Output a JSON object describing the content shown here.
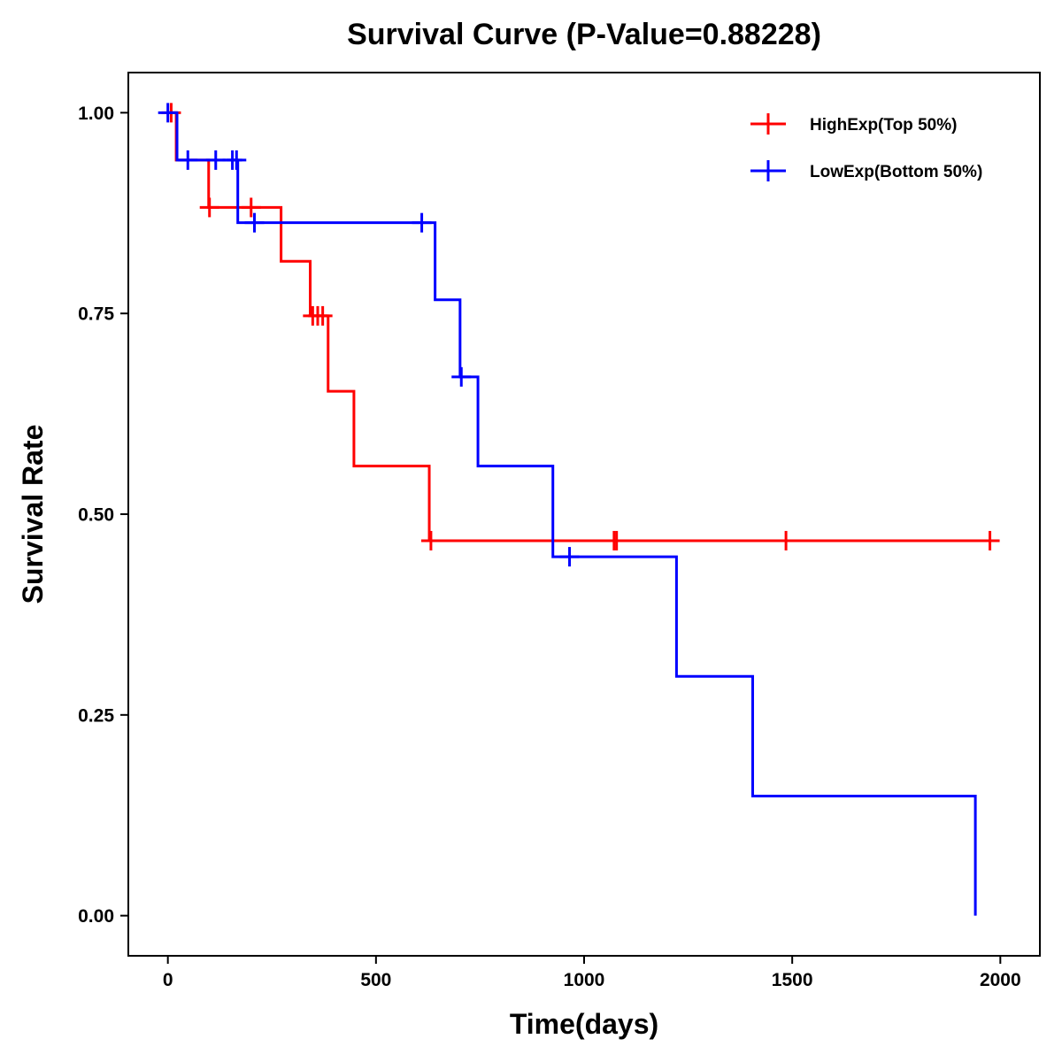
{
  "chart_data": {
    "type": "line",
    "subtype": "kaplan-meier-step",
    "title": "Survival Curve (P-Value=0.88228)",
    "xlabel": "Time(days)",
    "ylabel": "Survival Rate",
    "xlim": [
      -95,
      2095
    ],
    "ylim": [
      -0.05,
      1.05
    ],
    "x_ticks": [
      0,
      500,
      1000,
      1500,
      2000
    ],
    "x_tick_labels": [
      "0",
      "500",
      "1000",
      "1500",
      "2000"
    ],
    "y_ticks": [
      0,
      0.25,
      0.5,
      0.75,
      1.0
    ],
    "y_tick_labels": [
      "0.00",
      "0.25",
      "0.50",
      "0.75",
      "1.00"
    ],
    "grid": false,
    "legend_position": "top-right",
    "series": [
      {
        "name": "HighExp(Top 50%)",
        "color": "#ff0000",
        "steps": [
          [
            0,
            1.0
          ],
          [
            20,
            0.941
          ],
          [
            98,
            0.882
          ],
          [
            272,
            0.815
          ],
          [
            342,
            0.747
          ],
          [
            385,
            0.653
          ],
          [
            447,
            0.56
          ],
          [
            628,
            0.467
          ],
          [
            1985,
            0.467
          ]
        ],
        "censored": [
          [
            8,
            1.0
          ],
          [
            100,
            0.882
          ],
          [
            200,
            0.882
          ],
          [
            348,
            0.747
          ],
          [
            360,
            0.747
          ],
          [
            372,
            0.747
          ],
          [
            632,
            0.467
          ],
          [
            1072,
            0.467
          ],
          [
            1078,
            0.467
          ],
          [
            1485,
            0.467
          ],
          [
            1975,
            0.467
          ]
        ]
      },
      {
        "name": "LowExp(Bottom 50%)",
        "color": "#0000ff",
        "steps": [
          [
            0,
            1.0
          ],
          [
            22,
            0.941
          ],
          [
            168,
            0.863
          ],
          [
            642,
            0.767
          ],
          [
            702,
            0.671
          ],
          [
            745,
            0.56
          ],
          [
            925,
            0.447
          ],
          [
            1222,
            0.298
          ],
          [
            1405,
            0.149
          ],
          [
            1940,
            0.0
          ]
        ],
        "censored": [
          [
            0,
            1.0
          ],
          [
            48,
            0.941
          ],
          [
            115,
            0.941
          ],
          [
            155,
            0.941
          ],
          [
            165,
            0.941
          ],
          [
            208,
            0.863
          ],
          [
            610,
            0.863
          ],
          [
            705,
            0.671
          ],
          [
            965,
            0.447
          ]
        ]
      }
    ]
  }
}
